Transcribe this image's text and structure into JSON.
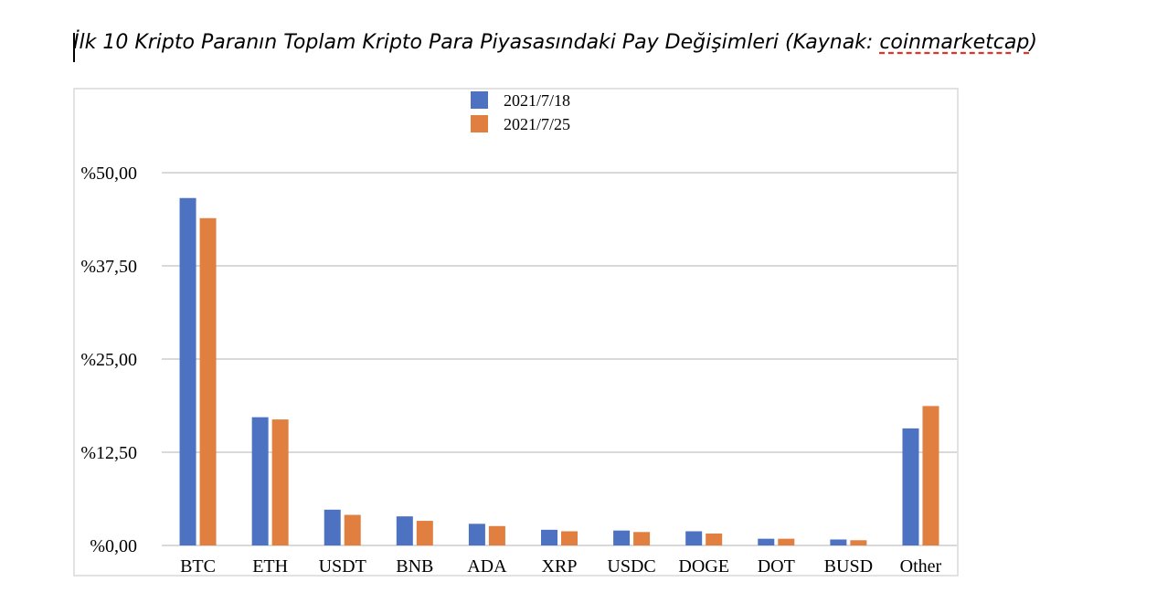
{
  "title_prefix": "İlk 10 Kripto Paranın Toplam Kripto Para Piyasasındaki Pay Değişimleri (Kaynak: ",
  "title_link": "coinmarketcap",
  "title_suffix": ")",
  "chart_data": {
    "type": "bar",
    "categories": [
      "BTC",
      "ETH",
      "USDT",
      "BNB",
      "ADA",
      "XRP",
      "USDC",
      "DOGE",
      "DOT",
      "BUSD",
      "Other"
    ],
    "series": [
      {
        "name": "2021/7/18",
        "color": "#4e72c2",
        "values": [
          46.6,
          17.2,
          4.8,
          3.9,
          2.9,
          2.1,
          2.0,
          1.9,
          0.9,
          0.8,
          15.7
        ]
      },
      {
        "name": "2021/7/25",
        "color": "#e07f3f",
        "values": [
          43.9,
          16.9,
          4.1,
          3.3,
          2.6,
          1.9,
          1.8,
          1.6,
          0.9,
          0.7,
          18.7
        ]
      }
    ],
    "yticks": [
      "%0,00",
      "%12,50",
      "%25,00",
      "%37,50",
      "%50,00"
    ],
    "ylim": [
      0,
      50
    ],
    "legend_position": "top",
    "grid": true
  }
}
